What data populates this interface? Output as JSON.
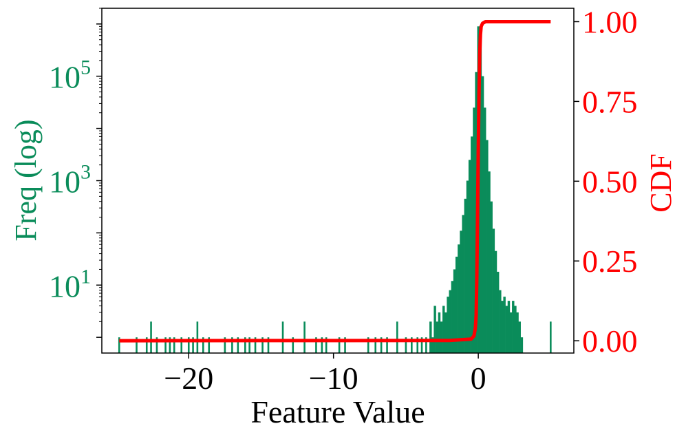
{
  "chart_data": {
    "type": "histogram",
    "xlabel": "Feature Value",
    "ylabel_left": "Freq (log)",
    "ylabel_right": "CDF",
    "left_scale": "log",
    "x_ticks": [
      -20,
      -10,
      0
    ],
    "left_ticks": [
      {
        "base": "10",
        "exp": "1",
        "value": 10
      },
      {
        "base": "10",
        "exp": "3",
        "value": 1000
      },
      {
        "base": "10",
        "exp": "5",
        "value": 100000
      }
    ],
    "right_ticks": [
      "0.00",
      "0.25",
      "0.50",
      "0.75",
      "1.00"
    ],
    "xlim": [
      -26.0,
      6.6
    ],
    "left_ylim": [
      0.5,
      2000000
    ],
    "right_ylim": [
      -0.0385,
      1.042
    ],
    "colors": {
      "histogram": "#0a8c5a",
      "cdf": "#ff0000",
      "left_axis": "#0a8c5a",
      "right_axis": "#ff0000"
    },
    "outlier_bins": [
      {
        "x": -24.8,
        "count": 1
      },
      {
        "x": -23.6,
        "count": 1
      },
      {
        "x": -22.9,
        "count": 1
      },
      {
        "x": -22.6,
        "count": 2
      },
      {
        "x": -22.2,
        "count": 1
      },
      {
        "x": -21.6,
        "count": 1
      },
      {
        "x": -21.3,
        "count": 1
      },
      {
        "x": -21.0,
        "count": 1
      },
      {
        "x": -20.5,
        "count": 1
      },
      {
        "x": -20.0,
        "count": 1
      },
      {
        "x": -19.7,
        "count": 1
      },
      {
        "x": -19.4,
        "count": 2
      },
      {
        "x": -19.0,
        "count": 1
      },
      {
        "x": -18.6,
        "count": 1
      },
      {
        "x": -17.5,
        "count": 1
      },
      {
        "x": -17.0,
        "count": 1
      },
      {
        "x": -16.6,
        "count": 1
      },
      {
        "x": -16.1,
        "count": 1
      },
      {
        "x": -15.8,
        "count": 1
      },
      {
        "x": -15.4,
        "count": 1
      },
      {
        "x": -14.9,
        "count": 1
      },
      {
        "x": -14.5,
        "count": 1
      },
      {
        "x": -13.5,
        "count": 2
      },
      {
        "x": -12.8,
        "count": 1
      },
      {
        "x": -12.0,
        "count": 2
      },
      {
        "x": -11.2,
        "count": 1
      },
      {
        "x": -10.8,
        "count": 1
      },
      {
        "x": -10.5,
        "count": 1
      },
      {
        "x": -9.6,
        "count": 1
      },
      {
        "x": -9.2,
        "count": 1
      },
      {
        "x": -7.6,
        "count": 1
      },
      {
        "x": -7.1,
        "count": 1
      },
      {
        "x": -6.7,
        "count": 1
      },
      {
        "x": -6.3,
        "count": 1
      },
      {
        "x": -5.6,
        "count": 2
      },
      {
        "x": -5.0,
        "count": 1
      },
      {
        "x": -4.6,
        "count": 1
      },
      {
        "x": -4.2,
        "count": 1
      },
      {
        "x": -3.9,
        "count": 1
      },
      {
        "x": -3.6,
        "count": 1
      },
      {
        "x": 5.0,
        "count": 2
      }
    ],
    "main_bins": [
      {
        "x": -3.3,
        "count": 2
      },
      {
        "x": -3.15,
        "count": 1
      },
      {
        "x": -3.0,
        "count": 4
      },
      {
        "x": -2.85,
        "count": 2
      },
      {
        "x": -2.7,
        "count": 3
      },
      {
        "x": -2.55,
        "count": 2
      },
      {
        "x": -2.4,
        "count": 4
      },
      {
        "x": -2.25,
        "count": 3
      },
      {
        "x": -2.1,
        "count": 6
      },
      {
        "x": -1.95,
        "count": 8
      },
      {
        "x": -1.8,
        "count": 12
      },
      {
        "x": -1.65,
        "count": 20
      },
      {
        "x": -1.5,
        "count": 35
      },
      {
        "x": -1.35,
        "count": 60
      },
      {
        "x": -1.2,
        "count": 110
      },
      {
        "x": -1.05,
        "count": 220
      },
      {
        "x": -0.9,
        "count": 450
      },
      {
        "x": -0.75,
        "count": 1000
      },
      {
        "x": -0.6,
        "count": 2500
      },
      {
        "x": -0.45,
        "count": 7000
      },
      {
        "x": -0.3,
        "count": 25000
      },
      {
        "x": -0.15,
        "count": 120000
      },
      {
        "x": 0.0,
        "count": 900000
      },
      {
        "x": 0.15,
        "count": 500000
      },
      {
        "x": 0.3,
        "count": 100000
      },
      {
        "x": 0.45,
        "count": 25000
      },
      {
        "x": 0.6,
        "count": 6000
      },
      {
        "x": 0.75,
        "count": 1500
      },
      {
        "x": 0.9,
        "count": 400
      },
      {
        "x": 1.05,
        "count": 120
      },
      {
        "x": 1.2,
        "count": 45
      },
      {
        "x": 1.35,
        "count": 18
      },
      {
        "x": 1.5,
        "count": 8
      },
      {
        "x": 1.65,
        "count": 5
      },
      {
        "x": 1.8,
        "count": 6
      },
      {
        "x": 1.95,
        "count": 4
      },
      {
        "x": 2.1,
        "count": 5
      },
      {
        "x": 2.25,
        "count": 3
      },
      {
        "x": 2.4,
        "count": 5
      },
      {
        "x": 2.55,
        "count": 4
      },
      {
        "x": 2.7,
        "count": 3
      },
      {
        "x": 2.85,
        "count": 2
      },
      {
        "x": 3.0,
        "count": 1
      }
    ],
    "cdf": {
      "x": [
        -24.8,
        -2.0,
        -0.5,
        -0.3,
        -0.2,
        -0.15,
        -0.1,
        -0.05,
        0.0,
        0.05,
        0.1,
        0.15,
        0.2,
        0.3,
        0.5,
        5.0
      ],
      "y": [
        0.0,
        0.001,
        0.005,
        0.015,
        0.04,
        0.08,
        0.2,
        0.4,
        0.6,
        0.78,
        0.9,
        0.96,
        0.985,
        0.995,
        1.0,
        1.0
      ]
    }
  }
}
